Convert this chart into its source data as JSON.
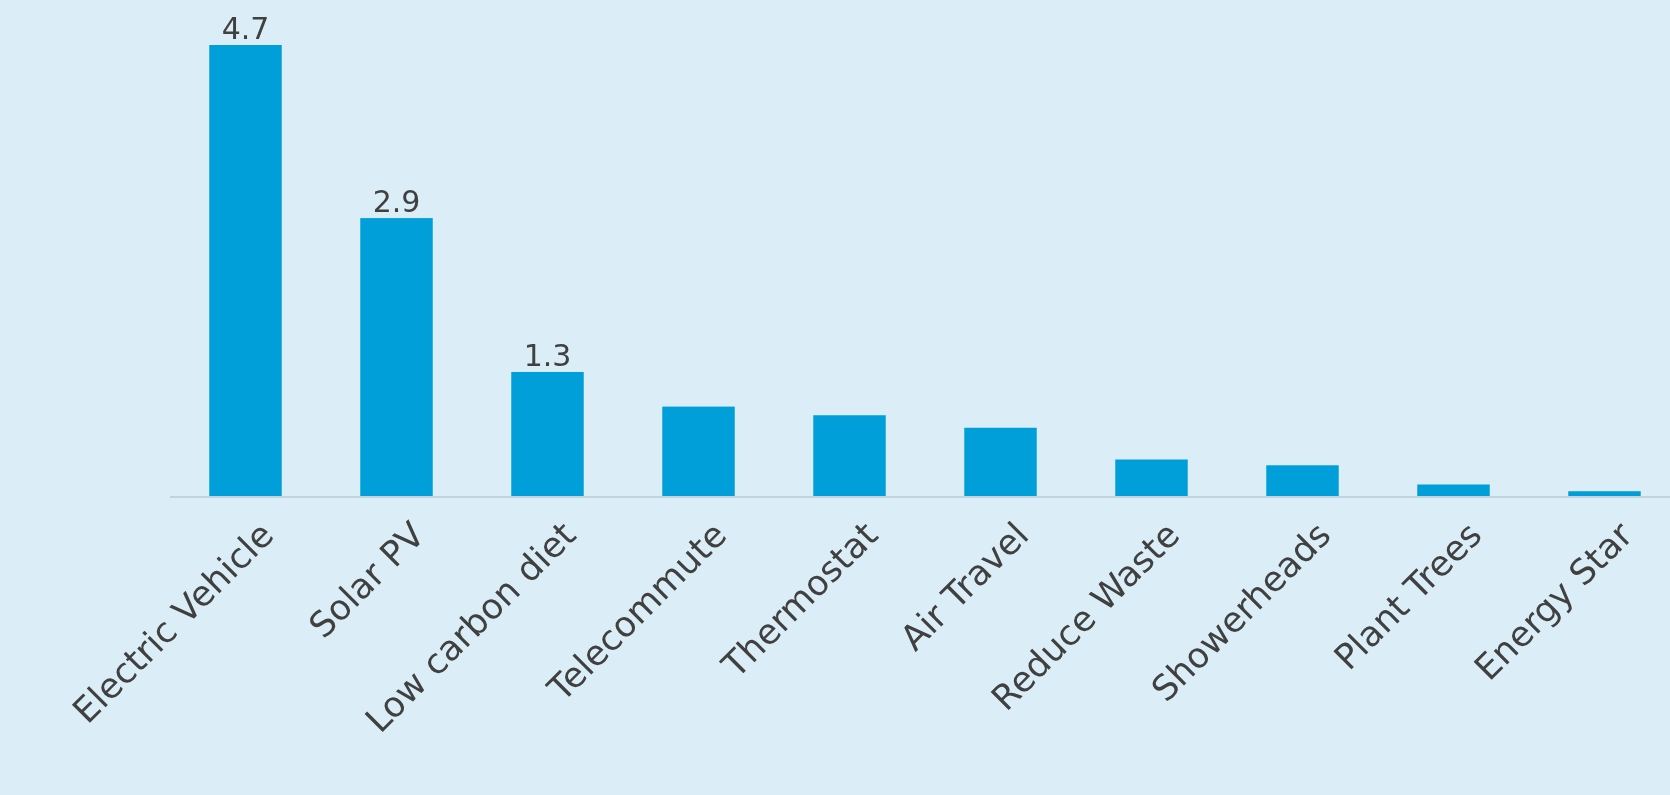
{
  "chart_data": {
    "type": "bar",
    "categories": [
      "Electric Vehicle",
      "Solar PV",
      "Low carbon diet",
      "Telecommute",
      "Thermostat",
      "Air Travel",
      "Reduce  Waste",
      "Showerheads",
      "Plant Trees",
      "Energy Star"
    ],
    "values": [
      4.7,
      2.9,
      1.3,
      0.94,
      0.85,
      0.72,
      0.39,
      0.33,
      0.13,
      0.06
    ],
    "value_labels": [
      "4.7",
      "2.9",
      "1.3",
      null,
      null,
      null,
      null,
      null,
      null,
      null
    ],
    "color": "#009fda"
  }
}
